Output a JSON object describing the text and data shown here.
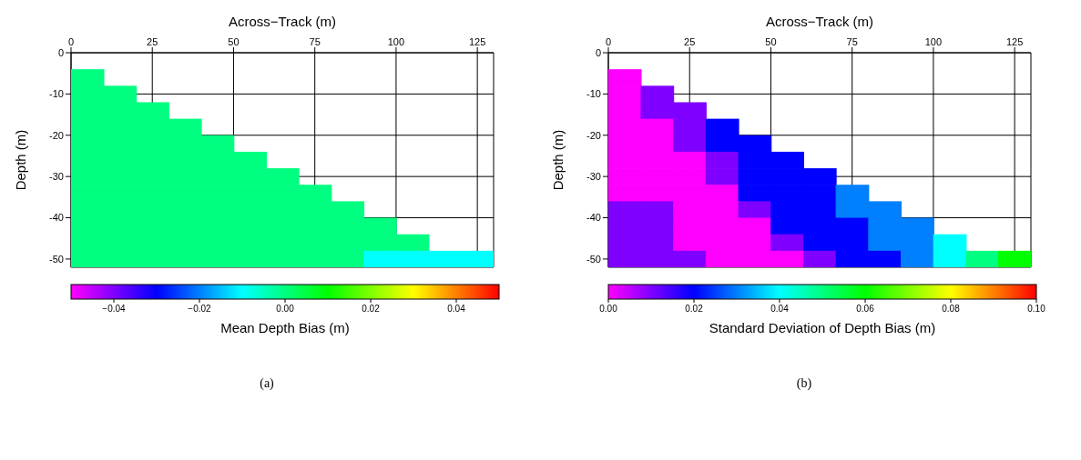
{
  "chart_data": [
    {
      "type": "scatter",
      "xlabel": "Across−Track (m)",
      "ylabel": "Depth (m)",
      "clabel": "Mean Depth Bias (m)",
      "annotations": [
        "(a)"
      ],
      "grid": true,
      "marker": "square",
      "xlim": [
        0,
        130
      ],
      "xticks": [
        0,
        25,
        50,
        75,
        100,
        125
      ],
      "ylim": [
        -52,
        0
      ],
      "yticks": [
        0,
        -10,
        -20,
        -30,
        -40,
        -50
      ],
      "clim": [
        -0.05,
        0.05
      ],
      "cticks": [
        {
          "value": -0.04,
          "label": "−0.04"
        },
        {
          "value": -0.02,
          "label": "−0.02"
        },
        {
          "value": 0,
          "label": "0.00"
        },
        {
          "value": 0.02,
          "label": "0.02"
        },
        {
          "value": 0.04,
          "label": "0.04"
        }
      ],
      "series": [
        {
          "x": [
            5,
            5,
            15,
            5,
            15,
            25,
            5,
            15,
            25,
            35,
            5,
            15,
            25,
            35,
            45,
            5,
            15,
            25,
            35,
            45,
            55,
            5,
            15,
            25,
            35,
            45,
            55,
            65,
            5,
            15,
            25,
            35,
            45,
            55,
            65,
            75,
            5,
            15,
            25,
            35,
            45,
            55,
            65,
            75,
            85,
            5,
            15,
            25,
            35,
            45,
            55,
            65,
            75,
            85,
            95,
            5,
            15,
            25,
            35,
            45,
            55,
            65,
            75,
            85,
            95,
            105,
            5,
            15,
            25,
            35,
            45,
            55,
            65,
            75,
            85,
            95,
            105,
            115,
            125
          ],
          "values": [
            -6,
            -10,
            -10,
            -14,
            -14,
            -14,
            -18,
            -18,
            -18,
            -18,
            -22,
            -22,
            -22,
            -22,
            -22,
            -26,
            -26,
            -26,
            -26,
            -26,
            -26,
            -30,
            -30,
            -30,
            -30,
            -30,
            -30,
            -30,
            -34,
            -34,
            -34,
            -34,
            -34,
            -34,
            -34,
            -34,
            -38,
            -38,
            -38,
            -38,
            -38,
            -38,
            -38,
            -38,
            -38,
            -42,
            -42,
            -42,
            -42,
            -42,
            -42,
            -42,
            -42,
            -42,
            -42,
            -46,
            -46,
            -46,
            -46,
            -46,
            -46,
            -46,
            -46,
            -46,
            -46,
            -46,
            -50,
            -50,
            -50,
            -50,
            -50,
            -50,
            -50,
            -50,
            -50,
            -50,
            -50,
            -50,
            -50
          ],
          "cvalues": [
            0,
            0,
            0,
            0,
            0,
            0,
            0,
            0,
            0,
            0,
            0,
            0,
            0,
            0,
            0,
            0,
            0,
            0,
            0,
            0,
            0,
            0,
            0,
            0,
            0,
            0,
            0,
            0,
            0,
            0,
            0,
            0,
            0,
            0,
            0,
            0,
            0,
            0,
            0,
            0,
            0,
            0,
            0,
            0,
            0,
            0,
            0,
            0,
            0,
            0,
            0,
            0,
            0,
            0,
            0,
            0,
            0,
            0,
            0,
            0,
            0,
            0,
            0,
            0,
            0,
            0,
            0,
            0,
            0,
            0,
            0,
            0,
            0,
            0,
            0,
            -0.01,
            -0.01,
            -0.01,
            -0.01
          ]
        }
      ]
    },
    {
      "type": "scatter",
      "xlabel": "Across−Track (m)",
      "ylabel": "Depth (m)",
      "clabel": "Standard Deviation of Depth Bias (m)",
      "annotations": [
        "(b)"
      ],
      "grid": true,
      "marker": "square",
      "xlim": [
        0,
        130
      ],
      "xticks": [
        0,
        25,
        50,
        75,
        100,
        125
      ],
      "ylim": [
        -52,
        0
      ],
      "yticks": [
        0,
        -10,
        -20,
        -30,
        -40,
        -50
      ],
      "clim": [
        0,
        0.1
      ],
      "cticks": [
        {
          "value": 0,
          "label": "0.00"
        },
        {
          "value": 0.02,
          "label": "0.02"
        },
        {
          "value": 0.04,
          "label": "0.04"
        },
        {
          "value": 0.06,
          "label": "0.06"
        },
        {
          "value": 0.08,
          "label": "0.08"
        },
        {
          "value": 0.1,
          "label": "0.10"
        }
      ],
      "series": [
        {
          "x": [
            5,
            5,
            15,
            5,
            15,
            25,
            5,
            15,
            25,
            35,
            5,
            15,
            25,
            35,
            45,
            5,
            15,
            25,
            35,
            45,
            55,
            5,
            15,
            25,
            35,
            45,
            55,
            65,
            5,
            15,
            25,
            35,
            45,
            55,
            65,
            75,
            5,
            15,
            25,
            35,
            45,
            55,
            65,
            75,
            85,
            5,
            15,
            25,
            35,
            45,
            55,
            65,
            75,
            85,
            95,
            5,
            15,
            25,
            35,
            45,
            55,
            65,
            75,
            85,
            95,
            105,
            5,
            15,
            25,
            35,
            45,
            55,
            65,
            75,
            85,
            95,
            105,
            115,
            125
          ],
          "values": [
            -6,
            -10,
            -10,
            -14,
            -14,
            -14,
            -18,
            -18,
            -18,
            -18,
            -22,
            -22,
            -22,
            -22,
            -22,
            -26,
            -26,
            -26,
            -26,
            -26,
            -26,
            -30,
            -30,
            -30,
            -30,
            -30,
            -30,
            -30,
            -34,
            -34,
            -34,
            -34,
            -34,
            -34,
            -34,
            -34,
            -38,
            -38,
            -38,
            -38,
            -38,
            -38,
            -38,
            -38,
            -38,
            -42,
            -42,
            -42,
            -42,
            -42,
            -42,
            -42,
            -42,
            -42,
            -42,
            -46,
            -46,
            -46,
            -46,
            -46,
            -46,
            -46,
            -46,
            -46,
            -46,
            -46,
            -50,
            -50,
            -50,
            -50,
            -50,
            -50,
            -50,
            -50,
            -50,
            -50,
            -50,
            -50,
            -50
          ],
          "cvalues": [
            0,
            0,
            0.01,
            0,
            0.01,
            0.01,
            0,
            0,
            0.01,
            0.02,
            0,
            0,
            0.01,
            0.02,
            0.02,
            0,
            0,
            0,
            0.01,
            0.02,
            0.02,
            0,
            0,
            0,
            0.01,
            0.02,
            0.02,
            0.02,
            0,
            0,
            0,
            0,
            0.02,
            0.02,
            0.02,
            0.03,
            0.01,
            0.01,
            0,
            0,
            0.01,
            0.02,
            0.02,
            0.03,
            0.03,
            0.01,
            0.01,
            0,
            0,
            0,
            0.02,
            0.02,
            0.02,
            0.03,
            0.03,
            0.01,
            0.01,
            0,
            0,
            0,
            0.01,
            0.02,
            0.02,
            0.03,
            0.03,
            0.04,
            0.01,
            0.01,
            0.01,
            0,
            0,
            0,
            0.01,
            0.02,
            0.02,
            0.03,
            0.04,
            0.05,
            0.06
          ]
        }
      ]
    }
  ]
}
